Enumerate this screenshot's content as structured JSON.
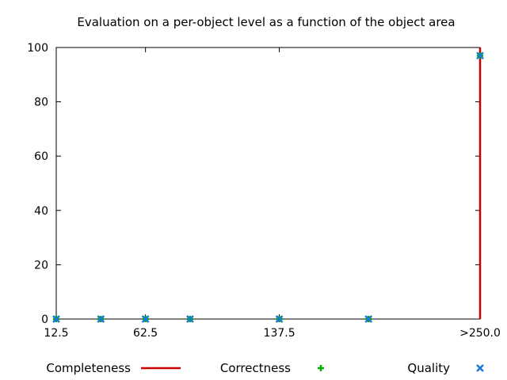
{
  "chart_data": {
    "type": "scatter",
    "title": "Evaluation on a per-object level as a function of the object area",
    "xlabel": "",
    "ylabel": "",
    "ylim": [
      0,
      100
    ],
    "xlim": [
      12.5,
      250
    ],
    "x_ticks": [
      {
        "value": 12.5,
        "label": "12.5"
      },
      {
        "value": 62.5,
        "label": "62.5"
      },
      {
        "value": 137.5,
        "label": "137.5"
      },
      {
        "value": 250,
        "label": ">250.0"
      }
    ],
    "y_ticks": [
      0,
      20,
      40,
      60,
      80,
      100
    ],
    "grid": false,
    "legend_position": "bottom",
    "series": [
      {
        "name": "Completeness",
        "style": "line",
        "color": "#cc0000",
        "points": [
          [
            250,
            0
          ],
          [
            250,
            100
          ]
        ]
      },
      {
        "name": "Correctness",
        "style": "plus",
        "color": "#00aa00",
        "points": [
          [
            12.5,
            0
          ],
          [
            37.5,
            0
          ],
          [
            62.5,
            0
          ],
          [
            87.5,
            0
          ],
          [
            137.5,
            0
          ],
          [
            187.5,
            0
          ],
          [
            250,
            97
          ]
        ]
      },
      {
        "name": "Quality",
        "style": "cross",
        "color": "#1a7ad6",
        "points": [
          [
            12.5,
            0
          ],
          [
            37.5,
            0
          ],
          [
            62.5,
            0
          ],
          [
            87.5,
            0
          ],
          [
            137.5,
            0
          ],
          [
            187.5,
            0
          ],
          [
            250,
            97
          ]
        ]
      }
    ]
  }
}
